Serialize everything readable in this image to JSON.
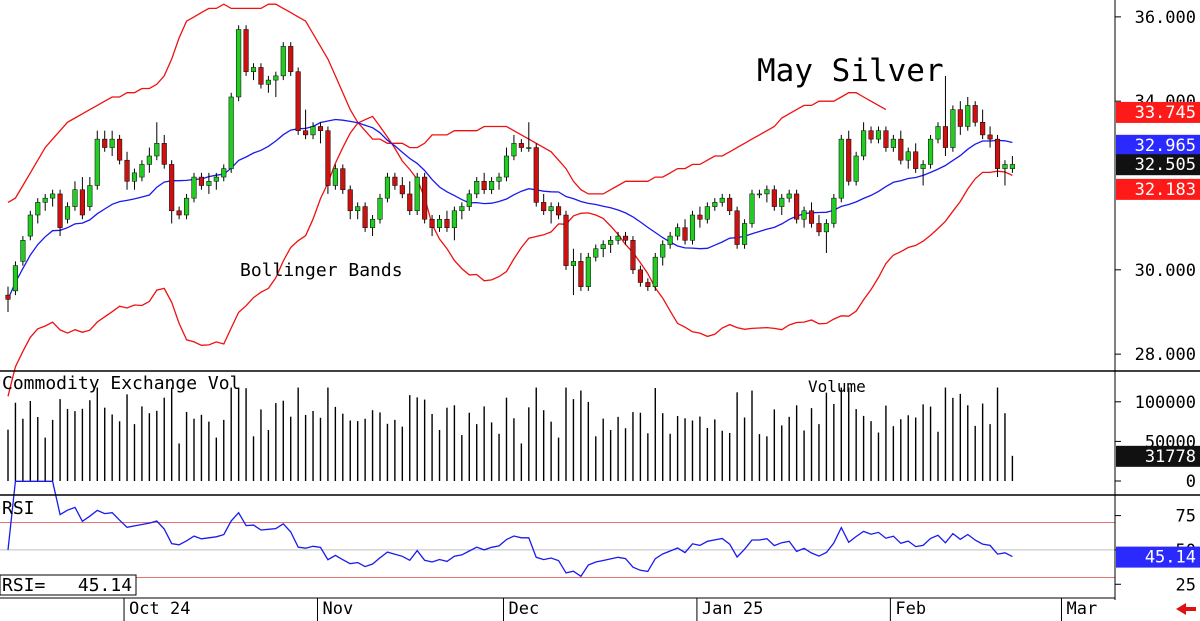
{
  "chart_data": {
    "type": "candlestick",
    "title": "May Silver",
    "annotation": "Bollinger Bands",
    "price_axis": {
      "ylim": [
        27.6,
        36.4
      ],
      "ticks": [
        "36.000",
        "34.000",
        "30.000",
        "28.000"
      ],
      "tick_values": [
        36,
        34,
        30,
        28
      ]
    },
    "x_axis": {
      "labels": [
        "Oct 24",
        "Nov",
        "Dec",
        "Jan 25",
        "Feb",
        "Mar"
      ],
      "label_index": [
        16,
        42,
        67,
        93,
        119,
        142
      ]
    },
    "callouts": {
      "upper_band": {
        "label": "33.745",
        "color": "#ff1a1a"
      },
      "middle_band": {
        "label": "32.965",
        "color": "#2a2aff"
      },
      "last_price": {
        "label": "32.505",
        "color": "#111111"
      },
      "lower_band": {
        "label": "32.183",
        "color": "#ff1a1a"
      }
    },
    "volume_panel": {
      "label": "Commodity Exchange Vol",
      "title": "Volume",
      "ylim": [
        0,
        125000
      ],
      "ticks": [
        "100000",
        "50000",
        "0"
      ],
      "tick_values": [
        100000,
        50000,
        0
      ],
      "callout": {
        "label": "31778",
        "color": "#111111"
      }
    },
    "rsi_panel": {
      "label": "RSI",
      "readout": "RSI=   45.14",
      "ylim": [
        15,
        90
      ],
      "ticks": [
        "75",
        "50",
        "25"
      ],
      "tick_values": [
        75,
        50,
        25
      ],
      "levels": [
        70,
        30
      ],
      "callout": {
        "label": "45.14",
        "color": "#2a2aff"
      }
    },
    "colors": {
      "up": "#22cc22",
      "down": "#cc1111",
      "band": "#ee1111",
      "mid": "#1a1aee",
      "rsi": "#1a1aee"
    },
    "candles": [
      [
        29.4,
        29.6,
        29.0,
        29.3
      ],
      [
        29.5,
        30.2,
        29.4,
        30.1
      ],
      [
        30.2,
        30.8,
        30.1,
        30.7
      ],
      [
        30.8,
        31.4,
        30.7,
        31.3
      ],
      [
        31.3,
        31.7,
        31.1,
        31.6
      ],
      [
        31.6,
        31.8,
        31.4,
        31.7
      ],
      [
        31.7,
        31.9,
        31.5,
        31.8
      ],
      [
        31.8,
        31.9,
        30.8,
        31.0
      ],
      [
        31.2,
        31.6,
        31.1,
        31.5
      ],
      [
        31.5,
        32.1,
        31.4,
        31.9
      ],
      [
        31.9,
        32.2,
        31.2,
        31.3
      ],
      [
        31.5,
        32.2,
        31.4,
        32.0
      ],
      [
        32.0,
        33.3,
        31.9,
        33.1
      ],
      [
        33.1,
        33.3,
        32.8,
        32.9
      ],
      [
        32.9,
        33.3,
        32.7,
        33.1
      ],
      [
        33.1,
        33.2,
        32.5,
        32.6
      ],
      [
        32.6,
        32.8,
        31.9,
        32.1
      ],
      [
        32.1,
        32.4,
        31.9,
        32.3
      ],
      [
        32.2,
        32.6,
        32.1,
        32.5
      ],
      [
        32.5,
        32.9,
        32.3,
        32.7
      ],
      [
        32.7,
        33.5,
        32.6,
        33.0
      ],
      [
        33.0,
        33.2,
        32.4,
        32.5
      ],
      [
        32.5,
        32.6,
        31.1,
        31.4
      ],
      [
        31.4,
        31.5,
        31.2,
        31.3
      ],
      [
        31.3,
        31.8,
        31.2,
        31.7
      ],
      [
        31.7,
        32.3,
        31.6,
        32.2
      ],
      [
        32.2,
        32.3,
        31.9,
        32.0
      ],
      [
        32.0,
        32.3,
        31.8,
        32.1
      ],
      [
        32.1,
        32.3,
        31.9,
        32.2
      ],
      [
        32.2,
        32.5,
        32.1,
        32.4
      ],
      [
        32.4,
        34.2,
        32.3,
        34.1
      ],
      [
        34.1,
        35.8,
        34.0,
        35.7
      ],
      [
        35.7,
        35.8,
        34.6,
        34.7
      ],
      [
        34.7,
        34.9,
        34.5,
        34.8
      ],
      [
        34.8,
        34.9,
        34.3,
        34.4
      ],
      [
        34.4,
        34.6,
        34.2,
        34.5
      ],
      [
        34.5,
        34.7,
        34.1,
        34.6
      ],
      [
        34.6,
        35.4,
        34.5,
        35.3
      ],
      [
        35.3,
        35.4,
        34.6,
        34.7
      ],
      [
        34.7,
        34.8,
        33.2,
        33.3
      ],
      [
        33.3,
        33.8,
        33.1,
        33.2
      ],
      [
        33.2,
        33.5,
        33.1,
        33.4
      ],
      [
        33.4,
        33.5,
        33.0,
        33.3
      ],
      [
        33.3,
        33.4,
        31.8,
        32.0
      ],
      [
        32.0,
        32.5,
        31.9,
        32.4
      ],
      [
        32.4,
        32.5,
        31.8,
        31.9
      ],
      [
        31.9,
        32.0,
        31.2,
        31.4
      ],
      [
        31.4,
        31.6,
        31.2,
        31.5
      ],
      [
        31.5,
        31.6,
        30.9,
        31.0
      ],
      [
        31.0,
        31.3,
        30.8,
        31.2
      ],
      [
        31.2,
        31.8,
        31.1,
        31.7
      ],
      [
        31.7,
        32.3,
        31.6,
        32.2
      ],
      [
        32.2,
        32.3,
        31.9,
        32.0
      ],
      [
        32.0,
        32.2,
        31.7,
        31.8
      ],
      [
        31.8,
        32.1,
        31.3,
        31.4
      ],
      [
        31.4,
        32.3,
        31.3,
        32.2
      ],
      [
        32.2,
        32.3,
        31.1,
        31.2
      ],
      [
        31.2,
        31.3,
        30.8,
        31.0
      ],
      [
        31.0,
        31.3,
        30.9,
        31.2
      ],
      [
        31.2,
        31.4,
        30.9,
        31.0
      ],
      [
        31.0,
        31.5,
        30.7,
        31.4
      ],
      [
        31.4,
        31.6,
        31.2,
        31.5
      ],
      [
        31.5,
        31.9,
        31.4,
        31.8
      ],
      [
        31.8,
        32.2,
        31.7,
        32.1
      ],
      [
        32.1,
        32.3,
        31.8,
        31.9
      ],
      [
        31.9,
        32.2,
        31.8,
        32.1
      ],
      [
        32.1,
        32.3,
        31.9,
        32.2
      ],
      [
        32.2,
        32.9,
        32.1,
        32.7
      ],
      [
        32.7,
        33.2,
        32.6,
        33.0
      ],
      [
        33.0,
        33.1,
        32.8,
        32.9
      ],
      [
        32.9,
        33.5,
        32.8,
        32.9
      ],
      [
        32.9,
        33.0,
        31.5,
        31.6
      ],
      [
        31.6,
        31.8,
        31.3,
        31.4
      ],
      [
        31.4,
        31.6,
        31.1,
        31.5
      ],
      [
        31.5,
        31.6,
        31.2,
        31.3
      ],
      [
        31.3,
        31.4,
        30.0,
        30.1
      ],
      [
        30.1,
        30.5,
        29.4,
        30.2
      ],
      [
        30.2,
        30.4,
        29.5,
        29.6
      ],
      [
        29.6,
        30.4,
        29.5,
        30.3
      ],
      [
        30.3,
        30.6,
        30.2,
        30.5
      ],
      [
        30.5,
        30.7,
        30.3,
        30.6
      ],
      [
        30.6,
        30.8,
        30.4,
        30.7
      ],
      [
        30.7,
        30.9,
        30.6,
        30.8
      ],
      [
        30.8,
        30.9,
        30.6,
        30.7
      ],
      [
        30.7,
        30.8,
        29.9,
        30.0
      ],
      [
        30.0,
        30.1,
        29.6,
        29.7
      ],
      [
        29.7,
        29.8,
        29.5,
        29.6
      ],
      [
        29.6,
        30.4,
        29.5,
        30.3
      ],
      [
        30.3,
        30.7,
        30.1,
        30.6
      ],
      [
        30.6,
        30.9,
        30.5,
        30.8
      ],
      [
        30.8,
        31.1,
        30.7,
        31.0
      ],
      [
        31.0,
        31.2,
        30.6,
        30.7
      ],
      [
        30.7,
        31.4,
        30.6,
        31.3
      ],
      [
        31.3,
        31.5,
        31.0,
        31.2
      ],
      [
        31.2,
        31.6,
        31.1,
        31.5
      ],
      [
        31.5,
        31.7,
        31.4,
        31.6
      ],
      [
        31.6,
        31.8,
        31.5,
        31.7
      ],
      [
        31.7,
        31.8,
        31.3,
        31.4
      ],
      [
        31.4,
        31.5,
        30.5,
        30.6
      ],
      [
        30.6,
        31.2,
        30.5,
        31.1
      ],
      [
        31.1,
        31.9,
        31.0,
        31.8
      ],
      [
        31.8,
        31.9,
        31.7,
        31.8
      ],
      [
        31.8,
        32.0,
        31.6,
        31.9
      ],
      [
        31.9,
        32.0,
        31.4,
        31.5
      ],
      [
        31.5,
        31.8,
        31.3,
        31.7
      ],
      [
        31.7,
        31.9,
        31.6,
        31.8
      ],
      [
        31.8,
        31.9,
        31.1,
        31.2
      ],
      [
        31.2,
        31.5,
        31.0,
        31.4
      ],
      [
        31.4,
        31.6,
        31.0,
        31.1
      ],
      [
        31.1,
        31.3,
        30.8,
        30.9
      ],
      [
        30.9,
        31.2,
        30.4,
        31.1
      ],
      [
        31.1,
        31.8,
        31.0,
        31.7
      ],
      [
        31.7,
        33.2,
        31.6,
        33.1
      ],
      [
        33.1,
        33.3,
        32.0,
        32.1
      ],
      [
        32.1,
        32.8,
        32.0,
        32.7
      ],
      [
        32.7,
        33.5,
        32.6,
        33.3
      ],
      [
        33.3,
        33.4,
        33.0,
        33.1
      ],
      [
        33.1,
        33.4,
        33.0,
        33.3
      ],
      [
        33.3,
        33.4,
        32.8,
        32.9
      ],
      [
        32.9,
        33.2,
        32.8,
        33.1
      ],
      [
        33.1,
        33.3,
        32.5,
        32.6
      ],
      [
        32.6,
        32.9,
        32.4,
        32.8
      ],
      [
        32.8,
        33.0,
        32.3,
        32.4
      ],
      [
        32.4,
        32.6,
        32.0,
        32.5
      ],
      [
        32.5,
        33.2,
        32.4,
        33.1
      ],
      [
        33.1,
        33.5,
        33.0,
        33.4
      ],
      [
        33.4,
        34.6,
        32.7,
        32.9
      ],
      [
        32.9,
        33.9,
        32.8,
        33.8
      ],
      [
        33.8,
        34.0,
        33.2,
        33.4
      ],
      [
        33.4,
        34.1,
        33.3,
        33.9
      ],
      [
        33.9,
        34.0,
        33.4,
        33.5
      ],
      [
        33.5,
        33.8,
        33.1,
        33.2
      ],
      [
        33.2,
        33.4,
        32.9,
        33.1
      ],
      [
        33.1,
        33.2,
        32.2,
        32.4
      ],
      [
        32.4,
        32.6,
        32.0,
        32.5
      ],
      [
        32.4,
        32.7,
        32.3,
        32.5
      ]
    ],
    "upper_band": [
      31.6,
      31.7,
      32.0,
      32.3,
      32.6,
      32.9,
      33.1,
      33.3,
      33.5,
      33.6,
      33.7,
      33.8,
      33.9,
      34.0,
      34.1,
      34.1,
      34.2,
      34.2,
      34.3,
      34.3,
      34.4,
      34.6,
      35.0,
      35.5,
      35.9,
      36.0,
      36.1,
      36.2,
      36.2,
      36.3,
      36.2,
      36.2,
      36.2,
      36.2,
      36.2,
      36.3,
      36.3,
      36.2,
      36.1,
      36.0,
      35.9,
      35.6,
      35.3,
      35.0,
      34.6,
      34.2,
      33.8,
      33.5,
      33.3,
      33.1,
      33.1,
      33.0,
      33.0,
      33.0,
      32.9,
      32.9,
      33.0,
      33.2,
      33.2,
      33.2,
      33.3,
      33.3,
      33.3,
      33.3,
      33.4,
      33.4,
      33.4,
      33.4,
      33.3,
      33.2,
      33.1,
      33.0,
      32.9,
      32.8,
      32.6,
      32.4,
      32.1,
      31.9,
      31.8,
      31.8,
      31.8,
      31.9,
      32.0,
      32.1,
      32.1,
      32.1,
      32.1,
      32.2,
      32.2,
      32.3,
      32.4,
      32.4,
      32.5,
      32.5,
      32.6,
      32.7,
      32.7,
      32.8,
      32.9,
      33.0,
      33.1,
      33.2,
      33.3,
      33.4,
      33.6,
      33.7,
      33.8,
      33.9,
      33.9,
      34.0,
      34.0,
      34.0,
      34.1,
      34.2,
      34.2,
      34.1,
      34.0,
      33.9,
      33.8
    ]
  }
}
